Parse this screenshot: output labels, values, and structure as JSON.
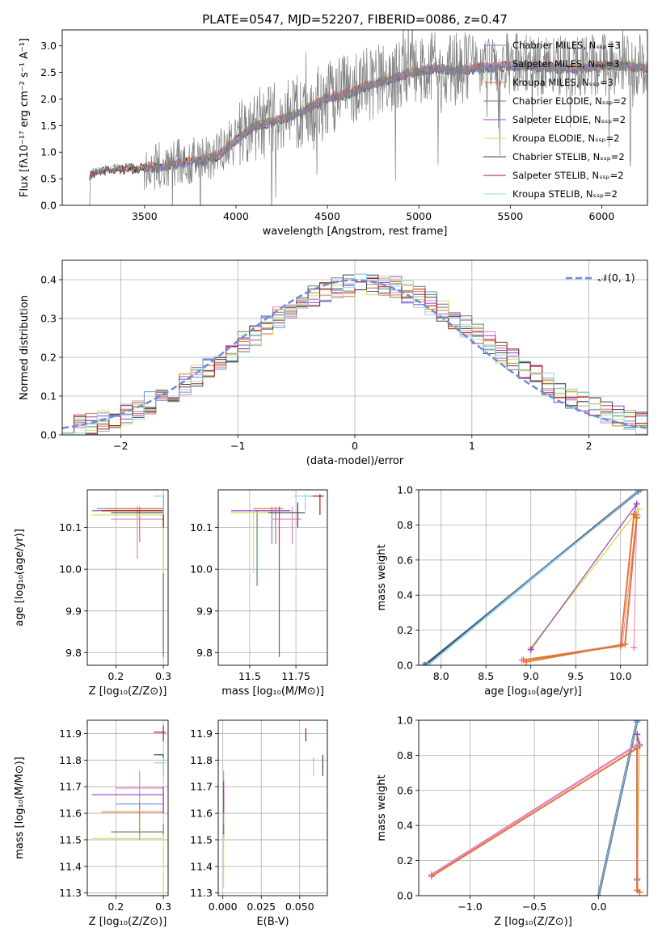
{
  "colors": {
    "Chabrier MILES": "#6a8fd6",
    "Salpeter MILES": "#e383c4",
    "Kroupa MILES": "#e0772e",
    "Chabrier ELODIE": "#5e8a5e",
    "Salpeter ELODIE": "#9a3fc2",
    "Kroupa ELODIE": "#cfe35a",
    "Chabrier STELIB": "#444444",
    "Salpeter STELIB": "#b01a1a",
    "Kroupa STELIB": "#8fd6e6",
    "data": "#7f7f7f",
    "normal": "#6a8fd6"
  },
  "chart_data": [
    {
      "id": "spectrum",
      "type": "line",
      "title": "PLATE=0547, MJD=52207, FIBERID=0086, z=0.47",
      "xlabel": "wavelength [Angstrom, rest frame]",
      "ylabel": "Flux [fλ10⁻¹⁷ erg cm⁻² s⁻¹ A⁻¹]",
      "xlim": [
        3050,
        6250
      ],
      "ylim": [
        0,
        3.3
      ],
      "xticks": [
        3500,
        4000,
        4500,
        5000,
        5500,
        6000
      ],
      "yticks": [
        0.0,
        0.5,
        1.0,
        1.5,
        2.0,
        2.5,
        3.0
      ],
      "grid": false,
      "legend_position": "top-right",
      "continuum": [
        [
          3200,
          0.6
        ],
        [
          3300,
          0.68
        ],
        [
          3400,
          0.72
        ],
        [
          3500,
          0.72
        ],
        [
          3600,
          0.75
        ],
        [
          3700,
          0.82
        ],
        [
          3800,
          0.85
        ],
        [
          3900,
          0.95
        ],
        [
          4000,
          1.25
        ],
        [
          4100,
          1.5
        ],
        [
          4200,
          1.6
        ],
        [
          4300,
          1.7
        ],
        [
          4400,
          1.85
        ],
        [
          4500,
          2.05
        ],
        [
          4600,
          2.1
        ],
        [
          4700,
          2.25
        ],
        [
          4800,
          2.35
        ],
        [
          4900,
          2.45
        ],
        [
          5000,
          2.55
        ],
        [
          5100,
          2.6
        ],
        [
          5200,
          2.55
        ],
        [
          5300,
          2.6
        ],
        [
          5400,
          2.62
        ],
        [
          5500,
          2.65
        ],
        [
          5600,
          2.65
        ],
        [
          5700,
          2.62
        ],
        [
          5800,
          2.6
        ],
        [
          5900,
          2.6
        ],
        [
          6000,
          2.65
        ],
        [
          6100,
          2.65
        ],
        [
          6200,
          2.62
        ]
      ],
      "series": [
        {
          "name": "Chabrier MILES, Nₛₛₚ=3"
        },
        {
          "name": "Salpeter MILES, Nₛₛₚ=3"
        },
        {
          "name": "Kroupa MILES, Nₛₛₚ=3"
        },
        {
          "name": "Chabrier ELODIE, Nₛₛₚ=2"
        },
        {
          "name": "Salpeter ELODIE, Nₛₛₚ=2"
        },
        {
          "name": "Kroupa ELODIE, Nₛₛₚ=2"
        },
        {
          "name": "Chabrier STELIB, Nₛₛₚ=2"
        },
        {
          "name": "Salpeter STELIB, Nₛₛₚ=2"
        },
        {
          "name": "Kroupa STELIB, Nₛₛₚ=2"
        }
      ]
    },
    {
      "id": "residuals",
      "type": "line",
      "xlabel": "(data-model)/error",
      "ylabel": "Normed distribution",
      "xlim": [
        -2.5,
        2.5
      ],
      "ylim": [
        0,
        0.45
      ],
      "xticks": [
        -2,
        -1,
        0,
        1,
        2
      ],
      "yticks": [
        0.0,
        0.1,
        0.2,
        0.3,
        0.4
      ],
      "grid": true,
      "legend_position": "top-right",
      "legend": "𝒩(0, 1)",
      "histogram_bins": [
        -2.5,
        2.5,
        0.1
      ]
    },
    {
      "id": "age-vs-Z",
      "type": "scatter",
      "xlabel": "Z [log₁₀(Z/Z⊙)]",
      "ylabel": "age  [log₁₀(age/yr)]",
      "xlim": [
        0.14,
        0.31
      ],
      "ylim": [
        9.77,
        10.19
      ],
      "xticks": [
        0.2,
        0.3
      ],
      "yticks": [
        9.8,
        9.9,
        10.0,
        10.1
      ],
      "grid": true
    },
    {
      "id": "age-vs-mass",
      "type": "scatter",
      "xlabel": "mass [log₁₀(M/M⊙)]",
      "xlim": [
        11.33,
        11.92
      ],
      "ylim": [
        9.77,
        10.19
      ],
      "xticks": [
        11.5,
        11.75
      ],
      "yticks": [
        9.8,
        9.9,
        10.0,
        10.1
      ],
      "grid": true
    },
    {
      "id": "massweight-vs-age",
      "type": "line",
      "xlabel": "age  [log₁₀(age/yr)]",
      "ylabel": "mass weight",
      "xlim": [
        7.75,
        10.3
      ],
      "ylim": [
        0,
        1
      ],
      "xticks": [
        8.0,
        8.5,
        9.0,
        9.5,
        10.0
      ],
      "yticks": [
        0.0,
        0.2,
        0.4,
        0.6,
        0.8,
        1.0
      ],
      "grid": true
    },
    {
      "id": "mass-vs-Z",
      "type": "scatter",
      "xlabel": "Z [log₁₀(Z/Z⊙)]",
      "ylabel": "mass [log₁₀(M/M⊙)]",
      "xlim": [
        0.14,
        0.31
      ],
      "ylim": [
        11.29,
        11.95
      ],
      "xticks": [
        0.2,
        0.3
      ],
      "yticks": [
        11.3,
        11.4,
        11.5,
        11.6,
        11.7,
        11.8,
        11.9
      ],
      "grid": true
    },
    {
      "id": "mass-vs-ebv",
      "type": "scatter",
      "xlabel": "E(B-V)",
      "xlim": [
        -0.003,
        0.068
      ],
      "ylim": [
        11.29,
        11.95
      ],
      "xticks": [
        0.0,
        0.025,
        0.05
      ],
      "yticks": [
        11.3,
        11.4,
        11.5,
        11.6,
        11.7,
        11.8,
        11.9
      ],
      "grid": true
    },
    {
      "id": "massweight-vs-Z",
      "type": "line",
      "xlabel": "Z [log₁₀(Z/Z⊙)]",
      "ylabel": "mass weight",
      "xlim": [
        -1.4,
        0.38
      ],
      "ylim": [
        0,
        1
      ],
      "xticks": [
        -1.0,
        -0.5,
        0.0
      ],
      "yticks": [
        0.0,
        0.2,
        0.4,
        0.6,
        0.8,
        1.0
      ],
      "grid": true
    }
  ]
}
